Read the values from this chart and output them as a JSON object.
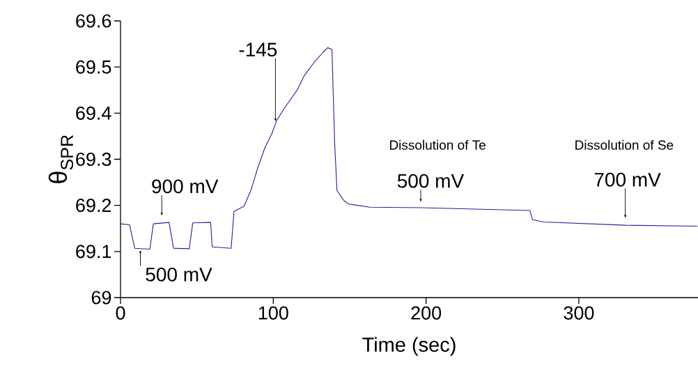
{
  "chart_data": {
    "type": "line",
    "xlabel": "Time (sec)",
    "ylabel": "θ$_{SPR}$",
    "xlim": [
      0,
      378
    ],
    "ylim": [
      69,
      69.6
    ],
    "xticks": [
      0,
      100,
      200,
      300
    ],
    "yticks": [
      69,
      69.1,
      69.2,
      69.3,
      69.4,
      69.5,
      69.6
    ],
    "grid": false,
    "marker": "none",
    "line_style": "solid",
    "series": [
      {
        "color": "#22229a",
        "x": [
          0,
          5.9,
          9.3,
          19.2,
          21.5,
          31.8,
          34.7,
          45,
          47.3,
          59,
          60,
          72.4,
          74.3,
          80.8,
          85.4,
          90,
          94.5,
          99.1,
          102.1,
          106.7,
          115.8,
          120.4,
          126.5,
          132.6,
          135.6,
          138.4,
          140.2,
          141.7,
          146.3,
          149.3,
          163,
          196.5,
          268,
          269.6,
          277,
          330.4,
          377.6
        ],
        "values": [
          69.16,
          69.158,
          69.107,
          69.105,
          69.16,
          69.163,
          69.107,
          69.106,
          69.162,
          69.163,
          69.11,
          69.107,
          69.187,
          69.198,
          69.233,
          69.283,
          69.325,
          69.356,
          69.383,
          69.408,
          69.451,
          69.482,
          69.509,
          69.532,
          69.542,
          69.538,
          69.333,
          69.232,
          69.21,
          69.203,
          69.196,
          69.195,
          69.189,
          69.169,
          69.164,
          69.157,
          69.155
        ]
      }
    ],
    "annotations": [
      {
        "text": "500 mV",
        "x": 13,
        "y": 69.105
      },
      {
        "text": "900 mV",
        "x": 27,
        "y": 69.162
      },
      {
        "text": "-145",
        "x": 101.4,
        "y": 69.377
      },
      {
        "text": "500 mV",
        "x": 196.5,
        "y": 69.195
      },
      {
        "text": "700 mV",
        "x": 330.4,
        "y": 69.157
      },
      "Dissolution of Te",
      "Dissolution of Se"
    ]
  }
}
